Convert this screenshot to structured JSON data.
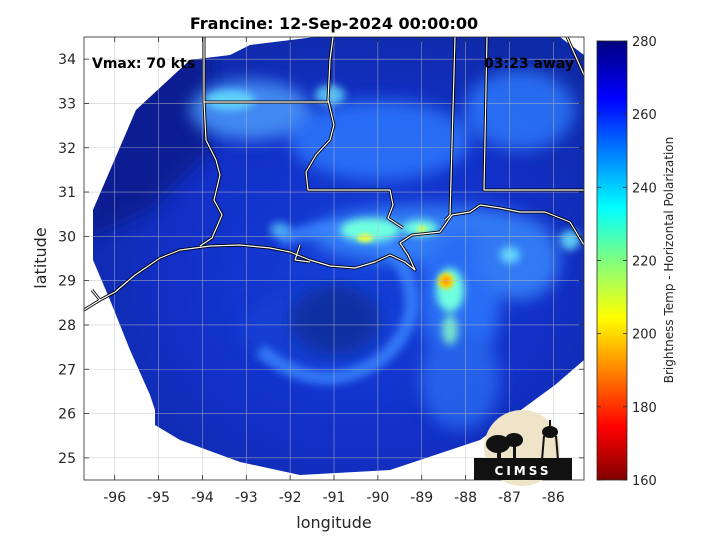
{
  "chart_data": {
    "type": "heatmap",
    "title": "Francine: 12-Sep-2024 00:00:00",
    "xlabel": "longitude",
    "ylabel": "latitude",
    "xlim": [
      -96.7,
      -85.3
    ],
    "ylim": [
      24.5,
      34.5
    ],
    "xticks": [
      -96,
      -95,
      -94,
      -93,
      -92,
      -91,
      -90,
      -89,
      -88,
      -87,
      -86
    ],
    "xtick_labels": [
      "-96",
      "-95",
      "-94",
      "-93",
      "-92",
      "-91",
      "-90",
      "-89",
      "-88",
      "-87",
      "-86"
    ],
    "yticks": [
      25,
      26,
      27,
      28,
      29,
      30,
      31,
      32,
      33,
      34
    ],
    "ytick_labels": [
      "25",
      "26",
      "27",
      "28",
      "29",
      "30",
      "31",
      "32",
      "33",
      "34"
    ],
    "grid": true,
    "colorbar": {
      "label": "Brightness Temp - Horizontal Polarization",
      "range": [
        160,
        280
      ],
      "ticks": [
        160,
        180,
        200,
        220,
        240,
        260,
        280
      ],
      "tick_labels": [
        "160",
        "180",
        "200",
        "220",
        "240",
        "260",
        "280"
      ],
      "colormap": "jet"
    },
    "storm_center": {
      "lon": -91.0,
      "lat": 28.5
    },
    "cold_cores": [
      {
        "lon": -88.6,
        "lat": 29.0,
        "value": 198
      },
      {
        "lon": -90.6,
        "lat": 30.0,
        "value": 222
      },
      {
        "lon": -89.1,
        "lat": 30.2,
        "value": 225
      }
    ],
    "annotations": {
      "vmax": "Vmax: 70 kts",
      "time_away": "03:23 away"
    }
  },
  "logo": {
    "text": "CIMSS"
  }
}
